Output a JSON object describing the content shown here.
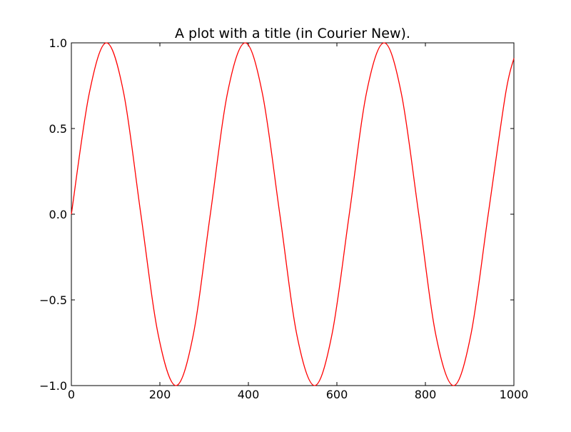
{
  "chart_data": {
    "type": "line",
    "title": "A plot with a title (in Courier New).",
    "xlabel": "",
    "ylabel": "",
    "xlim": [
      0,
      1000
    ],
    "ylim": [
      -1.0,
      1.0
    ],
    "x_ticks": [
      0,
      200,
      400,
      600,
      800,
      1000
    ],
    "x_tick_labels": [
      "0",
      "200",
      "400",
      "600",
      "800",
      "1000"
    ],
    "y_ticks": [
      -1.0,
      -0.5,
      0.0,
      0.5,
      1.0
    ],
    "y_tick_labels": [
      "−1.0",
      "−0.5",
      "0.0",
      "0.5",
      "1.0"
    ],
    "grid": false,
    "legend": "none",
    "series": [
      {
        "color": "#ff0000",
        "x": [
          0,
          40,
          79,
          118,
          157,
          196,
          236,
          275,
          314,
          353,
          393,
          432,
          471,
          510,
          550,
          589,
          628,
          667,
          707,
          746,
          785,
          824,
          864,
          903,
          942,
          981,
          1000
        ],
        "y": [
          0.0,
          0.7,
          1.0,
          0.71,
          0.0,
          -0.7,
          -1.0,
          -0.71,
          0.0,
          0.71,
          1.0,
          0.7,
          0.0,
          -0.71,
          -1.0,
          -0.7,
          0.0,
          0.71,
          1.0,
          0.7,
          0.0,
          -0.71,
          -1.0,
          -0.7,
          0.0,
          0.7,
          0.91
        ]
      }
    ]
  }
}
